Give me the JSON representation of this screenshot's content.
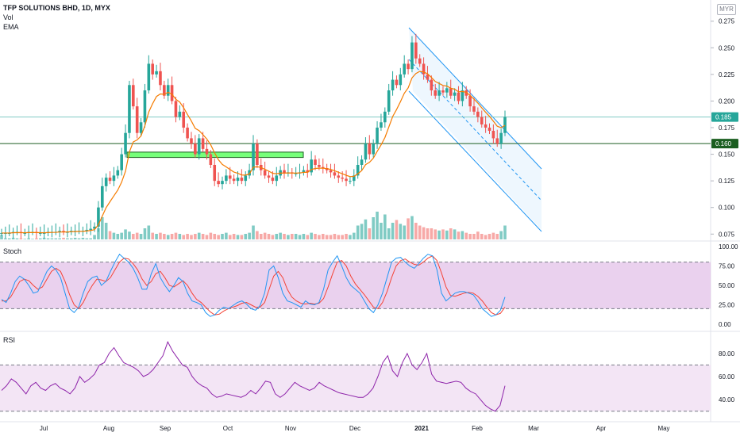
{
  "header": {
    "symbol_line": "TFP SOLUTIONS BHD, 1D, MYX",
    "indicators": [
      "Vol",
      "EMA"
    ],
    "currency": "MYR"
  },
  "panes": {
    "stoch_label": "Stoch",
    "rsi_label": "RSI"
  },
  "price_labels": {
    "last": "0.185",
    "support": "0.160"
  },
  "colors": {
    "up": "#26a69a",
    "down": "#ef5350",
    "ema": "#f57c00",
    "stoch_k": "#2196f3",
    "stoch_d": "#f44336",
    "stoch_band": "#e1bee7",
    "rsi_line": "#8e24aa",
    "rsi_band": "#f3e5f5",
    "support_line": "#1b5e20",
    "zone_fill": "#76ff7a",
    "channel": "#2196f3"
  },
  "chart_data": [
    {
      "type": "candlestick",
      "title": "TFP SOLUTIONS BHD, 1D, MYX",
      "y_ticks": [
        "0.275",
        "0.250",
        "0.225",
        "0.200",
        "0.175",
        "0.150",
        "0.125",
        "0.100",
        "0.075"
      ],
      "ylim": [
        0.07,
        0.28
      ],
      "x_ticks": [
        "Jul",
        "Aug",
        "Sep",
        "Oct",
        "Nov",
        "Dec",
        "2021",
        "Feb",
        "Mar",
        "Apr",
        "May"
      ],
      "last_price": 0.185,
      "horizontal_line": 0.16,
      "support_zone": [
        0.147,
        0.152
      ],
      "closes": [
        0.076,
        0.076,
        0.076,
        0.077,
        0.077,
        0.076,
        0.076,
        0.077,
        0.077,
        0.076,
        0.076,
        0.076,
        0.077,
        0.077,
        0.077,
        0.078,
        0.077,
        0.077,
        0.078,
        0.078,
        0.078,
        0.078,
        0.079,
        0.08,
        0.082,
        0.1,
        0.12,
        0.128,
        0.125,
        0.13,
        0.135,
        0.15,
        0.17,
        0.215,
        0.195,
        0.17,
        0.18,
        0.21,
        0.235,
        0.225,
        0.228,
        0.215,
        0.205,
        0.215,
        0.2,
        0.185,
        0.19,
        0.175,
        0.165,
        0.16,
        0.15,
        0.165,
        0.155,
        0.15,
        0.14,
        0.125,
        0.122,
        0.125,
        0.13,
        0.127,
        0.125,
        0.128,
        0.125,
        0.13,
        0.135,
        0.16,
        0.14,
        0.135,
        0.13,
        0.128,
        0.125,
        0.13,
        0.135,
        0.132,
        0.133,
        0.132,
        0.132,
        0.133,
        0.135,
        0.133,
        0.145,
        0.14,
        0.138,
        0.137,
        0.135,
        0.133,
        0.13,
        0.128,
        0.127,
        0.125,
        0.125,
        0.13,
        0.14,
        0.145,
        0.16,
        0.15,
        0.16,
        0.175,
        0.18,
        0.19,
        0.21,
        0.22,
        0.215,
        0.225,
        0.235,
        0.23,
        0.255,
        0.24,
        0.235,
        0.225,
        0.22,
        0.21,
        0.205,
        0.21,
        0.208,
        0.212,
        0.205,
        0.208,
        0.2,
        0.21,
        0.205,
        0.195,
        0.19,
        0.185,
        0.178,
        0.175,
        0.172,
        0.165,
        0.16,
        0.17,
        0.185
      ],
      "volume_pct_of_pane": [
        8,
        2,
        2,
        3,
        2,
        2,
        1,
        2,
        1,
        2,
        2,
        3,
        2,
        2,
        2,
        2,
        3,
        2,
        2,
        3,
        2,
        3,
        2,
        2,
        8,
        20,
        40,
        30,
        15,
        12,
        10,
        12,
        18,
        14,
        10,
        12,
        10,
        20,
        25,
        12,
        10,
        12,
        10,
        8,
        10,
        12,
        10,
        8,
        10,
        8,
        10,
        12,
        10,
        8,
        12,
        10,
        8,
        10,
        12,
        8,
        10,
        8,
        8,
        10,
        12,
        25,
        15,
        10,
        12,
        10,
        8,
        10,
        12,
        10,
        8,
        10,
        10,
        8,
        10,
        8,
        12,
        10,
        8,
        10,
        8,
        8,
        10,
        8,
        8,
        10,
        8,
        12,
        25,
        28,
        36,
        20,
        40,
        50,
        30,
        45,
        20,
        30,
        35,
        28,
        25,
        38,
        42,
        30,
        25,
        22,
        20,
        20,
        18,
        16,
        18,
        16,
        20,
        18,
        14,
        15,
        12,
        10,
        10,
        14,
        10,
        8,
        10,
        12,
        10,
        15,
        25
      ],
      "stoch_k": [
        32,
        28,
        40,
        55,
        62,
        58,
        50,
        40,
        42,
        55,
        68,
        75,
        70,
        60,
        40,
        20,
        15,
        22,
        40,
        55,
        60,
        62,
        50,
        55,
        68,
        80,
        90,
        85,
        80,
        72,
        60,
        45,
        45,
        65,
        78,
        60,
        50,
        42,
        50,
        60,
        55,
        40,
        30,
        28,
        25,
        15,
        10,
        12,
        18,
        22,
        20,
        24,
        28,
        30,
        26,
        20,
        18,
        24,
        40,
        70,
        75,
        60,
        40,
        30,
        28,
        25,
        22,
        30,
        26,
        25,
        28,
        45,
        70,
        80,
        88,
        75,
        60,
        50,
        45,
        40,
        30,
        20,
        15,
        25,
        40,
        60,
        80,
        85,
        86,
        80,
        75,
        72,
        78,
        85,
        90,
        88,
        70,
        40,
        30,
        35,
        40,
        42,
        42,
        40,
        38,
        30,
        20,
        15,
        10,
        12,
        18,
        35
      ],
      "stoch_d": [
        30,
        30,
        35,
        45,
        55,
        58,
        56,
        50,
        45,
        48,
        58,
        68,
        72,
        68,
        55,
        38,
        25,
        20,
        28,
        40,
        50,
        58,
        57,
        55,
        60,
        70,
        80,
        85,
        84,
        78,
        70,
        58,
        50,
        55,
        65,
        68,
        60,
        50,
        48,
        52,
        56,
        50,
        40,
        32,
        28,
        22,
        16,
        12,
        13,
        17,
        20,
        22,
        24,
        27,
        28,
        25,
        22,
        22,
        28,
        45,
        62,
        68,
        60,
        45,
        35,
        30,
        27,
        26,
        27,
        26,
        27,
        33,
        48,
        65,
        80,
        82,
        75,
        62,
        52,
        45,
        38,
        30,
        22,
        20,
        28,
        42,
        60,
        75,
        82,
        84,
        80,
        77,
        76,
        80,
        85,
        88,
        82,
        66,
        48,
        37,
        36,
        38,
        40,
        41,
        40,
        36,
        30,
        22,
        15,
        12,
        14,
        22
      ],
      "rsi": [
        48,
        52,
        58,
        55,
        50,
        45,
        52,
        55,
        50,
        48,
        52,
        54,
        50,
        48,
        45,
        50,
        60,
        55,
        58,
        62,
        70,
        72,
        80,
        85,
        78,
        72,
        70,
        68,
        65,
        60,
        62,
        66,
        72,
        78,
        90,
        82,
        76,
        70,
        68,
        60,
        55,
        52,
        50,
        45,
        42,
        43,
        45,
        44,
        43,
        42,
        44,
        48,
        45,
        50,
        56,
        55,
        45,
        42,
        45,
        50,
        55,
        52,
        50,
        48,
        50,
        55,
        52,
        50,
        48,
        46,
        45,
        44,
        43,
        42,
        42,
        45,
        50,
        60,
        72,
        78,
        65,
        60,
        72,
        80,
        70,
        66,
        72,
        80,
        62,
        56,
        55,
        54,
        55,
        56,
        55,
        50,
        47,
        45,
        40,
        35,
        32,
        30,
        35,
        52
      ],
      "stoch_levels": [
        80,
        20
      ],
      "stoch_ticks": [
        "100.00",
        "75.00",
        "50.00",
        "25.00",
        "0.00"
      ],
      "rsi_levels": [
        70,
        30
      ],
      "rsi_ticks": [
        "80.00",
        "60.00",
        "40.00"
      ]
    }
  ]
}
